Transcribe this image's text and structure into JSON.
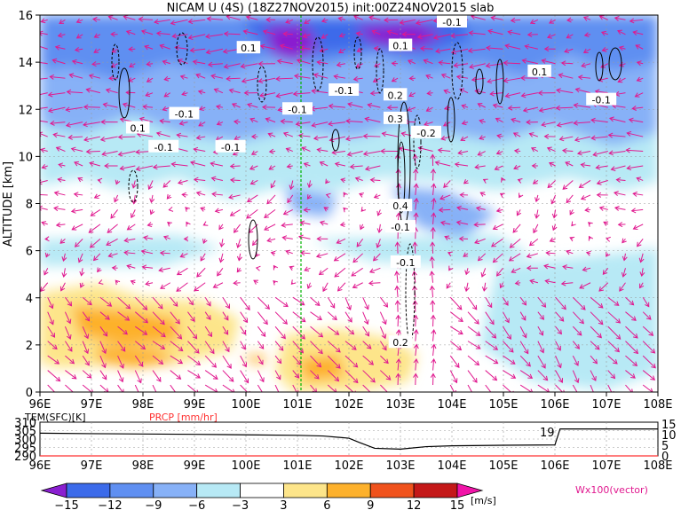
{
  "title": "NICAM U (4S) (18Z27NOV2015) init:00Z24NOV2015 slab",
  "chart_data": [
    {
      "type": "heatmap",
      "name": "zonal wind cross-section",
      "ylabel": "ALTITUDE [km]",
      "x_ticks": [
        "96E",
        "97E",
        "98E",
        "99E",
        "100E",
        "101E",
        "102E",
        "103E",
        "104E",
        "105E",
        "106E",
        "107E",
        "108E"
      ],
      "x_range": [
        96,
        108
      ],
      "y_ticks": [
        "0",
        "2",
        "4",
        "6",
        "8",
        "10",
        "12",
        "14",
        "16"
      ],
      "y_range": [
        0,
        16
      ],
      "reference_line_lon": 101,
      "contour_labels": [
        {
          "text": "0.1",
          "lon": 100.05,
          "alt": 14.6
        },
        {
          "text": "-0.1",
          "lon": 104.0,
          "alt": 15.7
        },
        {
          "text": "0.1",
          "lon": 103.0,
          "alt": 14.7
        },
        {
          "text": "0.1",
          "lon": 105.7,
          "alt": 13.6
        },
        {
          "text": "-0.1",
          "lon": 101.9,
          "alt": 12.8
        },
        {
          "text": "0.2",
          "lon": 102.9,
          "alt": 12.6
        },
        {
          "text": "-0.1",
          "lon": 101.0,
          "alt": 12.0
        },
        {
          "text": "-0.1",
          "lon": 106.9,
          "alt": 12.4
        },
        {
          "text": "-0.1",
          "lon": 98.8,
          "alt": 11.8
        },
        {
          "text": "0.3",
          "lon": 102.9,
          "alt": 11.6
        },
        {
          "text": "-0.2",
          "lon": 103.5,
          "alt": 11.0
        },
        {
          "text": "0.1",
          "lon": 97.9,
          "alt": 11.2
        },
        {
          "text": "-0.1",
          "lon": 99.7,
          "alt": 10.4
        },
        {
          "text": "-0.1",
          "lon": 98.4,
          "alt": 10.4
        },
        {
          "text": "0.4",
          "lon": 103.0,
          "alt": 7.9
        },
        {
          "text": "-0.1",
          "lon": 103.1,
          "alt": 5.5
        },
        {
          "text": "-0.1",
          "lon": 103.0,
          "alt": 7.0
        },
        {
          "text": "0.2",
          "lon": 103.0,
          "alt": 2.1
        }
      ]
    },
    {
      "type": "line",
      "name": "surface panel",
      "left_label": "TEM(SFC)[K]",
      "right_label": "PRCP [mm/hr]",
      "left_ticks": [
        "290",
        "295",
        "300",
        "305",
        "310"
      ],
      "right_ticks": [
        "0",
        "5",
        "10",
        "15"
      ],
      "x": [
        96,
        97,
        98,
        99,
        100,
        101,
        101.5,
        102,
        102.2,
        102.5,
        103,
        103.5,
        104,
        105,
        106,
        106.1,
        108
      ],
      "tem_k": [
        303.5,
        303.2,
        303.0,
        302.8,
        302.5,
        302.2,
        301.8,
        300.5,
        298,
        294.5,
        294,
        295.5,
        296,
        296.3,
        296.5,
        306,
        306
      ],
      "prcp_mm_hr": [
        0,
        0,
        0,
        0,
        0,
        0,
        0,
        0,
        0,
        0,
        0,
        0,
        0,
        0,
        0,
        0,
        0
      ],
      "annotation": "19"
    }
  ],
  "colorbar": {
    "labels": [
      "−15",
      "−12",
      "−9",
      "−6",
      "−3",
      "3",
      "6",
      "9",
      "12",
      "15"
    ],
    "unit": "[m/s]",
    "colors": [
      "#8a1fd0",
      "#3c6bea",
      "#5f8ff1",
      "#87b1f7",
      "#b7e9f5",
      "#ffffff",
      "#fde58a",
      "#fdb12c",
      "#f0521c",
      "#c41818",
      "#f014a8"
    ]
  },
  "vector_legend": "Wx100(vector)",
  "colors": {
    "vector": "#e0198f",
    "contour": "#000000",
    "marker": "#00b400",
    "precip": "#ff3030"
  }
}
